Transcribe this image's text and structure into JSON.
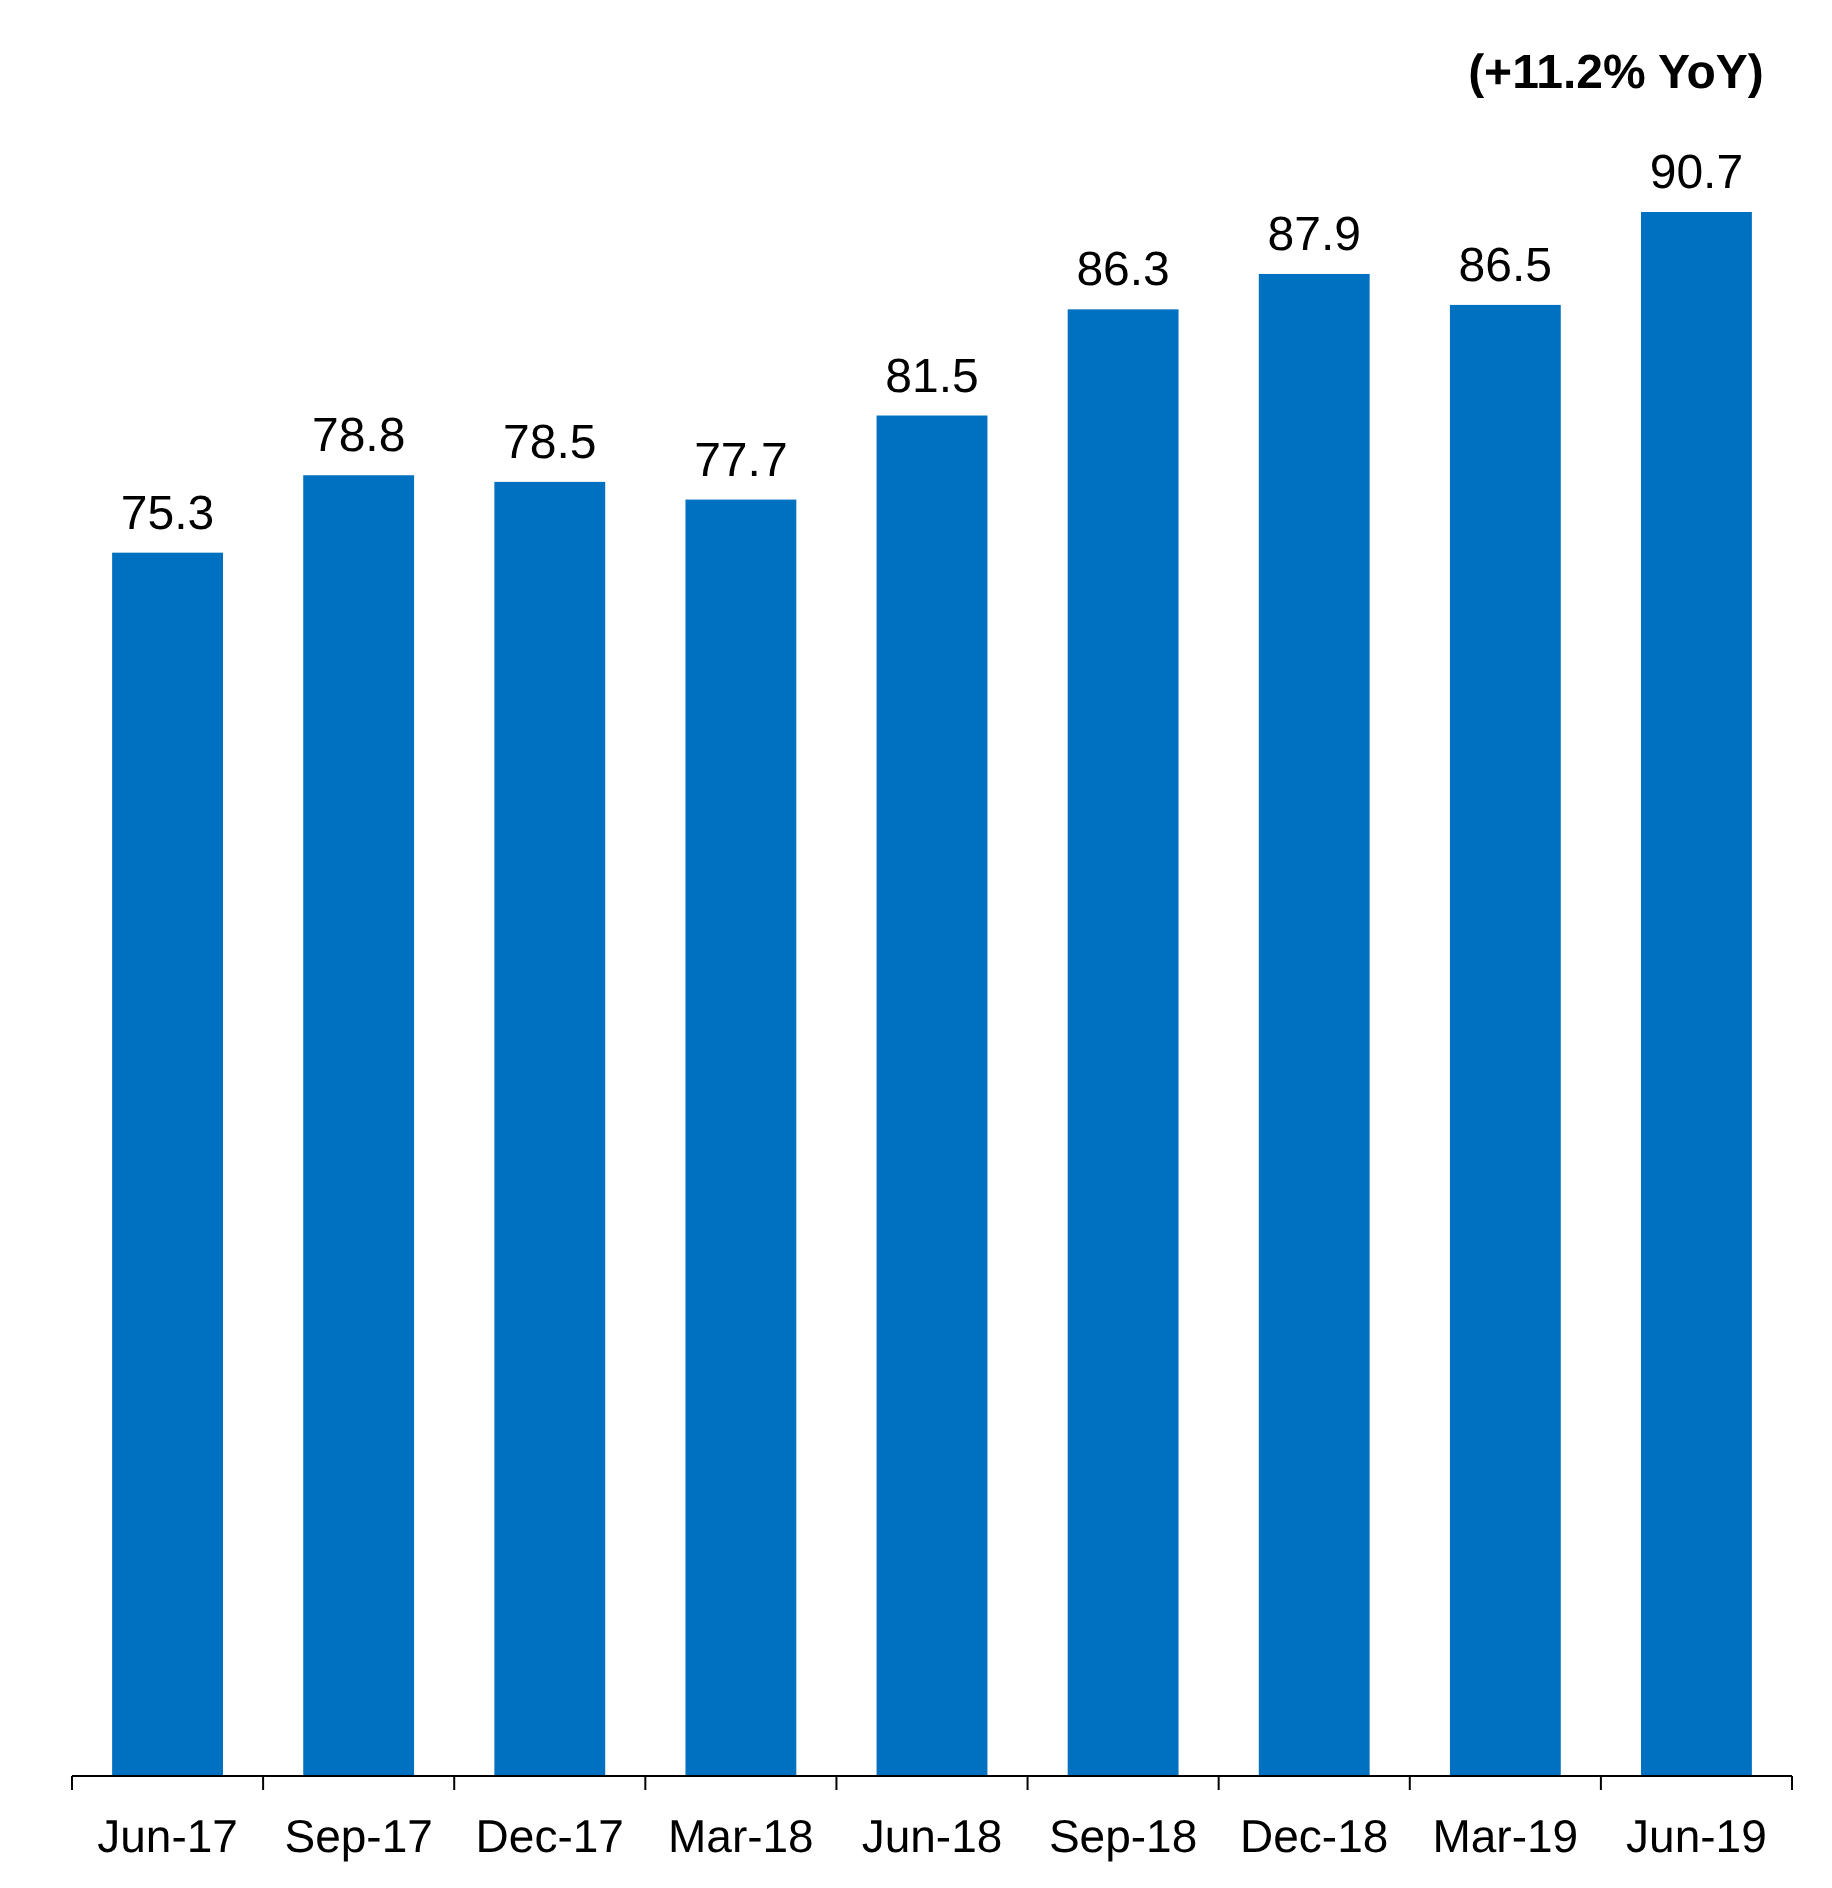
{
  "chart_data": {
    "type": "bar",
    "categories": [
      "Jun-17",
      "Sep-17",
      "Dec-17",
      "Mar-18",
      "Jun-18",
      "Sep-18",
      "Dec-18",
      "Mar-19",
      "Jun-19"
    ],
    "values": [
      75.3,
      78.8,
      78.5,
      77.7,
      81.5,
      86.3,
      87.9,
      86.5,
      90.7
    ],
    "color": "#0070c0",
    "ylim": [
      20,
      90.7
    ],
    "data_labels": true,
    "tick_labels": "x",
    "annotations": [
      {
        "text": "(+11.2% YoY)",
        "x": "Jun-19",
        "y": 90.7
      }
    ]
  }
}
